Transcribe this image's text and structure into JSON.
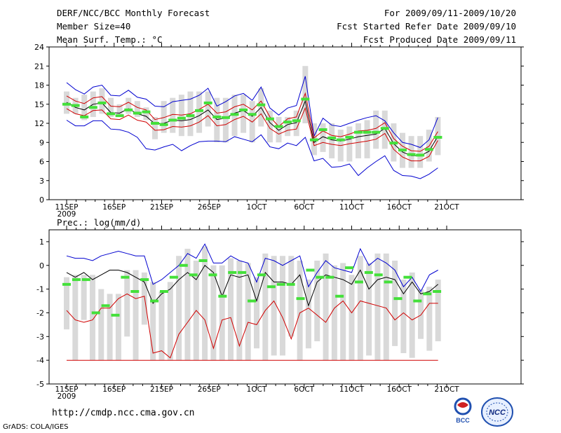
{
  "header": {
    "title": "DERF/NCC/BCC Monthly Forecast",
    "member_size": "Member Size=40",
    "temp_label": "Mean Surf. Temp.: °C",
    "forecast_period": "For 2009/09/11-2009/10/20",
    "fcst_started": "Fcst Started Refer Date 2009/09/10",
    "fcst_produced": "Fcst Produced Date 2009/09/11"
  },
  "footer": {
    "url": "http://cmdp.ncc.cma.gov.cn",
    "credit": "GrADS: COLA/IGES",
    "logo_left_text": "BCC",
    "logo_right_text": "NCC"
  },
  "colors": {
    "box": "#d9d9d9",
    "obs": "#44e03a",
    "max": "#0000d0",
    "min": "#0000d0",
    "mean": "#000000",
    "spread": "#d00000"
  },
  "chart_data": [
    {
      "type": "line",
      "title": "Mean Surf. Temp.: °C",
      "x_tick_labels": [
        "11SEP",
        "16SEP",
        "21SEP",
        "26SEP",
        "1OCT",
        "6OCT",
        "11OCT",
        "16OCT",
        "21OCT"
      ],
      "x_year_label": "2009",
      "ylim": [
        0,
        24
      ],
      "y_ticks": [
        0,
        3,
        6,
        9,
        12,
        15,
        18,
        21,
        24
      ],
      "days": 40,
      "series": [
        {
          "name": "ensemble max",
          "color": "max",
          "values": [
            18.4,
            17.3,
            16.6,
            17.7,
            18.0,
            16.4,
            16.3,
            17.2,
            16.1,
            15.8,
            14.7,
            14.6,
            15.4,
            15.6,
            15.8,
            16.4,
            17.5,
            14.7,
            15.4,
            16.3,
            16.7,
            15.6,
            17.7,
            14.4,
            13.3,
            14.4,
            14.8,
            19.4,
            10.0,
            12.8,
            11.7,
            11.5,
            12.0,
            12.5,
            12.9,
            13.2,
            12.4,
            10.5,
            9.0,
            8.7,
            8.2,
            9.4,
            12.9
          ]
        },
        {
          "name": "upper spread",
          "color": "spread",
          "values": [
            16.3,
            15.5,
            15.1,
            16.0,
            16.2,
            14.7,
            14.6,
            15.3,
            14.5,
            14.1,
            12.6,
            12.9,
            13.4,
            13.3,
            13.5,
            14.2,
            15.0,
            13.6,
            13.8,
            14.6,
            15.0,
            14.1,
            15.5,
            13.0,
            11.5,
            12.7,
            13.0,
            16.7,
            9.7,
            10.8,
            10.1,
            9.9,
            10.3,
            10.8,
            10.9,
            11.2,
            12.1,
            9.6,
            8.4,
            7.7,
            7.6,
            8.4,
            10.7
          ]
        },
        {
          "name": "ensemble mean",
          "color": "mean",
          "values": [
            15.3,
            14.5,
            14.1,
            15.0,
            15.2,
            13.7,
            13.6,
            14.3,
            13.5,
            13.1,
            11.9,
            12.0,
            12.5,
            12.4,
            12.6,
            13.2,
            14.1,
            12.6,
            12.8,
            13.6,
            14.0,
            13.1,
            14.5,
            12.1,
            10.9,
            11.8,
            12.1,
            15.5,
            9.0,
            9.9,
            9.4,
            9.2,
            9.5,
            9.9,
            10.1,
            10.3,
            11.2,
            8.8,
            7.5,
            6.9,
            6.9,
            7.6,
            10.0
          ]
        },
        {
          "name": "lower spread",
          "color": "spread",
          "values": [
            14.3,
            13.5,
            13.2,
            14.0,
            14.1,
            12.7,
            12.6,
            13.3,
            12.5,
            12.2,
            10.9,
            11.0,
            11.5,
            11.4,
            11.6,
            12.2,
            13.2,
            11.6,
            11.8,
            12.6,
            13.1,
            12.2,
            13.5,
            11.2,
            10.3,
            10.9,
            11.1,
            14.4,
            8.5,
            9.0,
            8.7,
            8.5,
            8.8,
            9.0,
            9.2,
            9.5,
            10.4,
            7.9,
            6.7,
            6.1,
            6.1,
            6.8,
            9.3
          ]
        },
        {
          "name": "ensemble min",
          "color": "min",
          "values": [
            12.5,
            11.6,
            11.6,
            12.4,
            12.4,
            11.1,
            11.0,
            10.6,
            9.8,
            8.0,
            7.8,
            8.3,
            8.7,
            7.7,
            8.5,
            9.1,
            9.2,
            9.2,
            9.1,
            9.9,
            9.5,
            9.1,
            10.2,
            8.3,
            8.0,
            8.9,
            8.5,
            9.8,
            6.1,
            6.5,
            5.1,
            5.2,
            5.6,
            3.8,
            5.0,
            6.0,
            6.9,
            4.6,
            3.8,
            3.7,
            3.3,
            4.0,
            5.0
          ]
        }
      ],
      "boxes": {
        "low": [
          13.5,
          13.5,
          12.5,
          13.0,
          13.5,
          13.0,
          13.0,
          13.5,
          13.0,
          12.5,
          9.5,
          10.5,
          10.5,
          10.0,
          10.0,
          10.5,
          11.5,
          9.0,
          9.0,
          10.0,
          10.5,
          9.0,
          11.5,
          9.0,
          9.0,
          10.0,
          10.0,
          12.0,
          7.0,
          7.5,
          6.5,
          6.0,
          6.0,
          6.5,
          6.5,
          8.0,
          8.0,
          6.0,
          5.0,
          5.0,
          5.0,
          6.0,
          7.0
        ],
        "high": [
          17.0,
          16.0,
          16.5,
          17.0,
          17.5,
          16.0,
          15.0,
          16.0,
          15.5,
          14.5,
          13.0,
          15.5,
          16.0,
          16.5,
          17.0,
          17.0,
          17.0,
          16.0,
          16.0,
          16.5,
          16.5,
          15.5,
          17.5,
          14.0,
          13.0,
          13.0,
          14.0,
          21.0,
          12.0,
          12.0,
          12.0,
          11.0,
          11.5,
          12.0,
          12.5,
          14.0,
          14.0,
          12.0,
          10.5,
          10.0,
          10.0,
          11.0,
          13.0
        ]
      },
      "observed": [
        15.0,
        14.8,
        13.0,
        14.5,
        15.2,
        13.5,
        13.2,
        14.1,
        13.6,
        13.8,
        12.0,
        11.8,
        12.5,
        12.8,
        13.2,
        14.0,
        15.2,
        13.0,
        12.9,
        13.4,
        14.1,
        13.4,
        14.9,
        12.7,
        11.5,
        12.2,
        12.4,
        15.8,
        9.4,
        11.0,
        9.7,
        9.4,
        9.8,
        10.6,
        10.6,
        10.6,
        11.2,
        8.9,
        7.8,
        7.1,
        7.0,
        7.9,
        9.8
      ]
    },
    {
      "type": "line",
      "title": "Prec.: log(mm/d)",
      "x_tick_labels": [
        "11SEP",
        "16SEP",
        "21SEP",
        "26SEP",
        "1OCT",
        "6OCT",
        "11OCT",
        "16OCT",
        "21OCT"
      ],
      "x_year_label": "2009",
      "ylim": [
        -5,
        1.5
      ],
      "y_ticks": [
        -5,
        -4,
        -3,
        -2,
        -1,
        0,
        1
      ],
      "days": 40,
      "series": [
        {
          "name": "ensemble max",
          "color": "max",
          "values": [
            0.4,
            0.3,
            0.3,
            0.2,
            0.4,
            0.5,
            0.6,
            0.5,
            0.4,
            0.4,
            -0.8,
            -0.6,
            -0.3,
            0.0,
            0.5,
            0.3,
            0.9,
            0.1,
            0.1,
            0.4,
            0.2,
            0.1,
            -0.7,
            0.3,
            0.2,
            0.0,
            0.2,
            0.4,
            -0.9,
            -0.3,
            0.2,
            -0.1,
            -0.2,
            -0.3,
            0.7,
            0.0,
            0.3,
            0.1,
            -0.2,
            -0.9,
            -0.5,
            -1.1,
            -0.4,
            -0.2
          ]
        },
        {
          "name": "mean",
          "color": "mean",
          "values": [
            -0.3,
            -0.5,
            -0.3,
            -0.6,
            -0.4,
            -0.2,
            -0.2,
            -0.3,
            -0.5,
            -0.7,
            -1.6,
            -1.2,
            -1.0,
            -0.6,
            -0.3,
            -0.6,
            0.0,
            -0.3,
            -1.3,
            -0.4,
            -0.5,
            -0.4,
            -1.5,
            -0.3,
            -0.7,
            -0.7,
            -0.8,
            -0.4,
            -1.7,
            -0.7,
            -0.4,
            -0.5,
            -0.6,
            -0.8,
            -0.2,
            -1.0,
            -0.6,
            -0.5,
            -0.6,
            -1.2,
            -0.7,
            -1.2,
            -1.1,
            -0.8
          ]
        },
        {
          "name": "ensemble min",
          "color": "spread",
          "values": [
            -1.9,
            -2.3,
            -2.4,
            -2.3,
            -1.8,
            -1.8,
            -1.4,
            -1.2,
            -1.4,
            -1.3,
            -3.7,
            -3.6,
            -3.9,
            -2.9,
            -2.4,
            -1.9,
            -2.3,
            -3.5,
            -2.3,
            -2.2,
            -3.4,
            -2.4,
            -2.5,
            -1.9,
            -1.5,
            -2.2,
            -3.1,
            -2.0,
            -1.8,
            -2.1,
            -2.4,
            -1.8,
            -1.5,
            -2.0,
            -1.5,
            -1.6,
            -1.7,
            -1.8,
            -2.3,
            -2.0,
            -2.3,
            -2.1,
            -1.6,
            -1.6
          ]
        },
        {
          "name": "floor",
          "color": "spread",
          "values": [
            -4,
            -4,
            -4,
            -4,
            -4,
            -4,
            -4,
            -4,
            -4,
            -4,
            -4,
            -4,
            -4,
            -4,
            -4,
            -4,
            -4,
            -4,
            -4,
            -4,
            -4,
            -4,
            -4,
            -4,
            -4,
            -4,
            -4,
            -4,
            -4,
            -4,
            -4,
            -4,
            -4,
            -4,
            -4,
            -4,
            -4,
            -4,
            -4,
            -4,
            -4,
            -4,
            -4,
            -4
          ]
        }
      ],
      "boxes": {
        "low": [
          -2.7,
          -4.0,
          -2.3,
          -4.0,
          -4.0,
          -4.0,
          -4.0,
          -3.0,
          -4.0,
          -2.5,
          -4.0,
          -4.0,
          -4.0,
          -4.0,
          -4.0,
          -4.0,
          -4.0,
          -4.0,
          -4.0,
          -4.0,
          -4.0,
          -4.0,
          -3.5,
          -4.0,
          -3.8,
          -3.8,
          -3.0,
          -4.0,
          -3.5,
          -3.2,
          -4.0,
          -4.0,
          -4.0,
          -4.0,
          -4.0,
          -3.8,
          -4.0,
          -4.0,
          -3.4,
          -3.7,
          -3.9,
          -3.1,
          -3.6,
          -3.2
        ],
        "high": [
          -0.5,
          -0.4,
          -0.4,
          -0.4,
          -1.0,
          -1.2,
          -1.2,
          -0.2,
          -0.2,
          -0.3,
          -0.7,
          -1.1,
          -0.7,
          0.4,
          0.7,
          0.2,
          0.8,
          0.0,
          0.0,
          0.3,
          0.2,
          0.1,
          -0.5,
          0.5,
          0.4,
          0.4,
          0.4,
          0.2,
          -0.6,
          0.2,
          0.5,
          0.0,
          0.1,
          -0.4,
          0.4,
          0.1,
          0.5,
          0.5,
          0.2,
          -0.6,
          -0.3,
          -1.0,
          -0.9,
          -0.6
        ]
      },
      "observed": [
        -0.8,
        -0.6,
        -0.6,
        -2.0,
        -1.7,
        -2.1,
        -0.5,
        -1.1,
        -0.6,
        -1.5,
        -1.1,
        -0.5,
        0.0,
        -0.4,
        0.2,
        -0.4,
        -1.3,
        -0.3,
        -0.3,
        -1.5,
        -0.4,
        -0.9,
        -0.8,
        -0.8,
        -1.4,
        -0.2,
        -0.5,
        -0.5,
        -1.3,
        -0.1,
        -0.7,
        -0.3,
        -0.4,
        -0.7,
        -1.4,
        -0.5,
        -1.5,
        -1.2,
        -1.1
      ]
    }
  ]
}
